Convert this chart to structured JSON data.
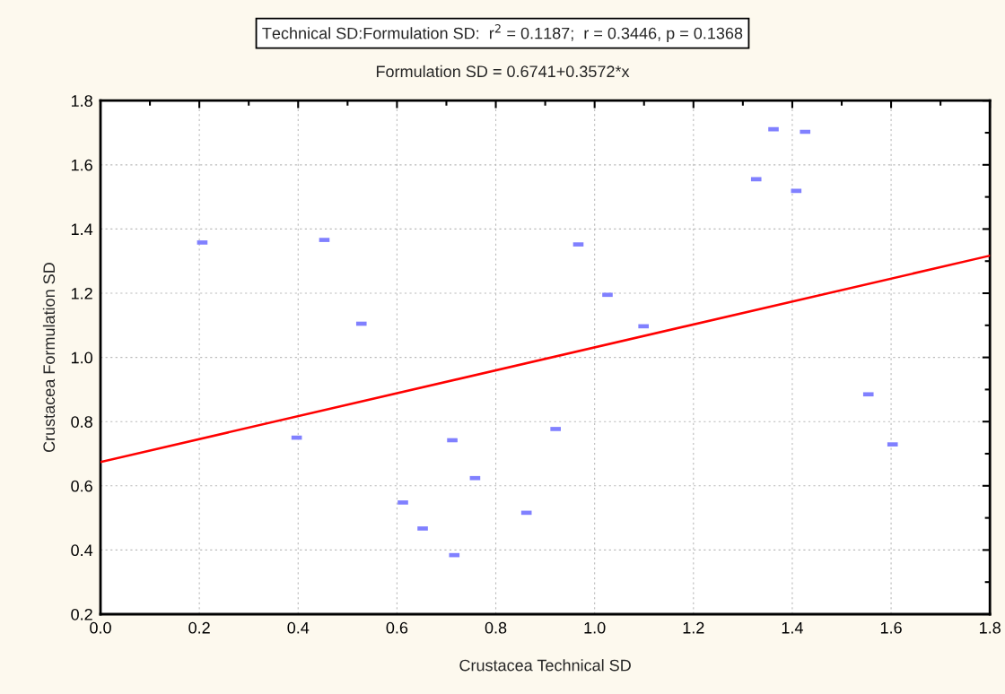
{
  "chart_data": {
    "type": "scatter",
    "title": "Technical SD:Formulation SD:  r$^{2}$ = 0.1187;  r = 0.3446, p = 0.1368",
    "subtitle": "Formulation SD = 0.6741+0.3572*x",
    "xlabel": "Crustacea Technical SD",
    "ylabel": "Crustacea Formulation SD",
    "series": [
      {
        "color": "#8080ff",
        "x": [
          0.206,
          0.453,
          0.528,
          0.967,
          1.026,
          1.099,
          1.362,
          1.426,
          1.327,
          1.408,
          0.397,
          0.712,
          0.758,
          0.612,
          0.652,
          0.716,
          0.862,
          0.921,
          1.554,
          1.603
        ],
        "values": [
          1.358,
          1.366,
          1.105,
          1.352,
          1.195,
          1.097,
          1.711,
          1.703,
          1.555,
          1.519,
          0.75,
          0.742,
          0.624,
          0.548,
          0.467,
          0.384,
          0.516,
          0.777,
          0.885,
          0.729
        ]
      },
      {
        "type": "line",
        "color": "#ff0000",
        "marker": "none",
        "line_style": "solid",
        "x": [
          0,
          1.8
        ],
        "values": [
          0.674,
          1.317
        ]
      }
    ],
    "xlim": [
      0,
      1.8
    ],
    "ylim": [
      0.2,
      1.8
    ],
    "xticks": [
      {
        "value": 0,
        "label": "0.0"
      },
      0.2,
      0.4,
      0.6,
      0.8,
      {
        "value": 1,
        "label": "1.0"
      },
      1.2,
      1.4,
      1.6,
      1.8
    ],
    "yticks": [
      0.2,
      0.4,
      0.6,
      0.8,
      {
        "value": 1,
        "label": "1.0"
      },
      1.2,
      1.4,
      1.6,
      1.8
    ],
    "grid": true
  }
}
